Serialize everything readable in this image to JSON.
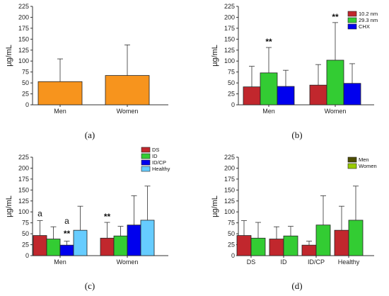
{
  "chart_data": [
    {
      "panel": "(a)",
      "type": "bar",
      "ylabel": "µg/mL",
      "ylim": [
        0,
        225
      ],
      "yticks": [
        "0",
        "25",
        "50",
        "75",
        "100",
        "125",
        "150",
        "175",
        "200",
        "225"
      ],
      "categories": [
        "Men",
        "Women"
      ],
      "series": [
        {
          "name": "",
          "color": "#f7941d",
          "values": [
            53,
            67
          ],
          "err": [
            52,
            70
          ],
          "sig": [
            "",
            ""
          ]
        }
      ],
      "annotations": [],
      "legend": null
    },
    {
      "panel": "(b)",
      "type": "bar",
      "ylabel": "µg/mL",
      "ylim": [
        0,
        225
      ],
      "yticks": [
        "0",
        "25",
        "50",
        "75",
        "100",
        "125",
        "150",
        "175",
        "200",
        "225"
      ],
      "categories": [
        "Men",
        "Women"
      ],
      "series": [
        {
          "name": "10.2 nm",
          "color": "#c1272d",
          "values": [
            41,
            45
          ],
          "err": [
            47,
            47
          ],
          "sig": [
            "",
            ""
          ]
        },
        {
          "name": "29.3 nm",
          "color": "#33cc33",
          "values": [
            73,
            102
          ],
          "err": [
            58,
            86
          ],
          "sig": [
            "**",
            "**"
          ]
        },
        {
          "name": "CHX",
          "color": "#0000ee",
          "values": [
            42,
            49
          ],
          "err": [
            37,
            45
          ],
          "sig": [
            "",
            ""
          ]
        }
      ],
      "annotations": [],
      "legend": "top-right"
    },
    {
      "panel": "(c)",
      "type": "bar",
      "ylabel": "µg/mL",
      "ylim": [
        0,
        225
      ],
      "yticks": [
        "0",
        "25",
        "50",
        "75",
        "100",
        "125",
        "150",
        "175",
        "200",
        "225"
      ],
      "categories": [
        "Men",
        "Women"
      ],
      "series": [
        {
          "name": "DS",
          "color": "#c1272d",
          "values": [
            46,
            40
          ],
          "err": [
            34,
            36
          ],
          "sig": [
            "",
            "**"
          ]
        },
        {
          "name": "ID",
          "color": "#33cc33",
          "values": [
            38,
            45
          ],
          "err": [
            28,
            22
          ],
          "sig": [
            "",
            ""
          ]
        },
        {
          "name": "ID/CP",
          "color": "#0000ee",
          "values": [
            24,
            70
          ],
          "err": [
            9,
            67
          ],
          "sig": [
            "**",
            ""
          ]
        },
        {
          "name": "Healthy",
          "color": "#66ccff",
          "values": [
            58,
            81
          ],
          "err": [
            55,
            78
          ],
          "sig": [
            "",
            ""
          ]
        }
      ],
      "annotations": [
        {
          "text": "a",
          "category": 0,
          "series": 0,
          "y": 90
        },
        {
          "text": "a",
          "category": 0,
          "series": 2,
          "y": 73
        }
      ],
      "legend": "top-right"
    },
    {
      "panel": "(d)",
      "type": "bar",
      "ylabel": "µg/mL",
      "ylim": [
        0,
        225
      ],
      "yticks": [
        "0",
        "25",
        "50",
        "75",
        "100",
        "125",
        "150",
        "175",
        "200",
        "225"
      ],
      "categories": [
        "DS",
        "ID",
        "ID/CP",
        "Healthy"
      ],
      "series": [
        {
          "name": "Men",
          "color": "#c1272d",
          "values": [
            46,
            38,
            24,
            58
          ],
          "err": [
            34,
            28,
            9,
            55
          ],
          "sig": [
            "",
            "",
            "",
            ""
          ]
        },
        {
          "name": "Women",
          "color": "#33cc33",
          "values": [
            40,
            45,
            70,
            81
          ],
          "err": [
            36,
            22,
            67,
            78
          ],
          "sig": [
            "",
            "",
            "",
            ""
          ]
        }
      ],
      "annotations": [],
      "legend": "top-right",
      "legend_colors": [
        "#4d4d00",
        "#99cc00"
      ]
    }
  ]
}
